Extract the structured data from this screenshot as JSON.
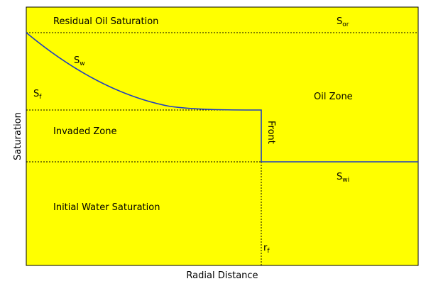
{
  "colors": {
    "background": "#ffff00",
    "border": "#000000",
    "curve": "#1f3fbf",
    "dashed": "#000000"
  },
  "labels": {
    "residual_oil_saturation": "Residual Oil Saturation",
    "s_or_main": "S",
    "s_or_sub": "or",
    "s_w_main": "S",
    "s_w_sub": "w",
    "s_f_main": "S",
    "s_f_sub": "f",
    "oil_zone": "Oil Zone",
    "invaded_zone": "Invaded Zone",
    "front": "Front",
    "s_wi_main": "S",
    "s_wi_sub": "wi",
    "initial_water_saturation": "Initial Water Saturation",
    "r_f_main": "r",
    "r_f_sub": "f",
    "y_axis": "Saturation",
    "x_axis": "Radial Distance"
  }
}
